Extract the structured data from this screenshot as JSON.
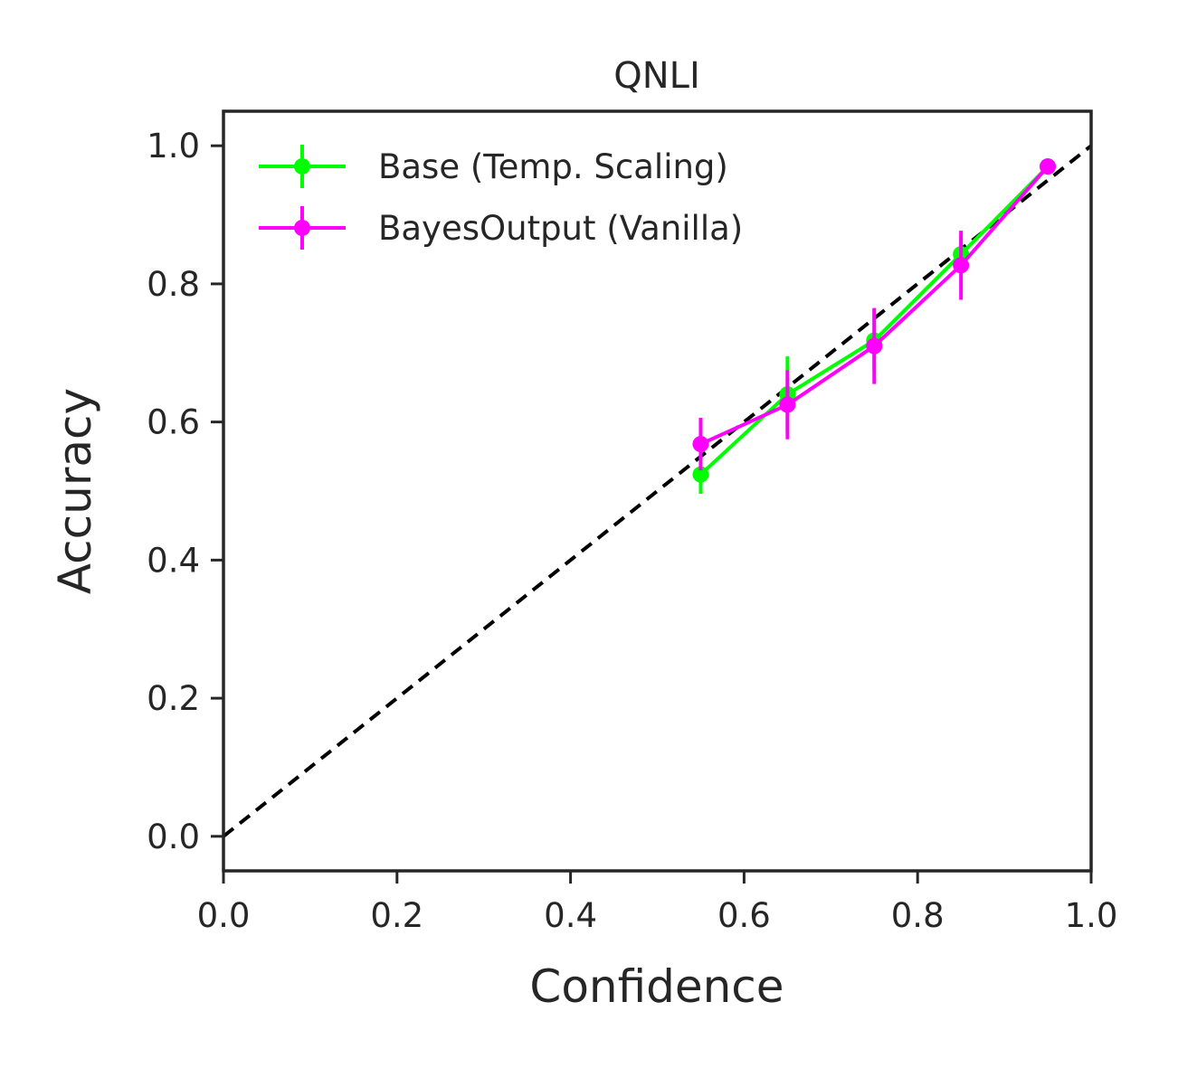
{
  "chart_data": {
    "type": "line",
    "title": "QNLI",
    "xlabel": "Confidence",
    "ylabel": "Accuracy",
    "xlim": [
      0.0,
      1.0
    ],
    "ylim": [
      -0.05,
      1.05
    ],
    "xticks": [
      "0.0",
      "0.2",
      "0.4",
      "0.6",
      "0.8",
      "1.0"
    ],
    "yticks": [
      "0.0",
      "0.2",
      "0.4",
      "0.6",
      "0.8",
      "1.0"
    ],
    "grid": false,
    "legend_position": "top-left",
    "reference_line": {
      "style": "dashed",
      "color": "#000000",
      "x": [
        0,
        1
      ],
      "y": [
        0,
        1
      ]
    },
    "series": [
      {
        "name": "Base (Temp. Scaling)",
        "color": "#00ff00",
        "x": [
          0.55,
          0.65,
          0.75,
          0.85,
          0.95
        ],
        "y": [
          0.524,
          0.64,
          0.718,
          0.843,
          0.97
        ],
        "yerr": [
          0.028,
          0.055,
          0.045,
          0.025,
          0.008
        ]
      },
      {
        "name": "BayesOutput (Vanilla)",
        "color": "#ff00ff",
        "x": [
          0.55,
          0.65,
          0.75,
          0.85,
          0.95
        ],
        "y": [
          0.568,
          0.625,
          0.71,
          0.827,
          0.97
        ],
        "yerr": [
          0.038,
          0.05,
          0.055,
          0.05,
          0.008
        ]
      }
    ]
  }
}
